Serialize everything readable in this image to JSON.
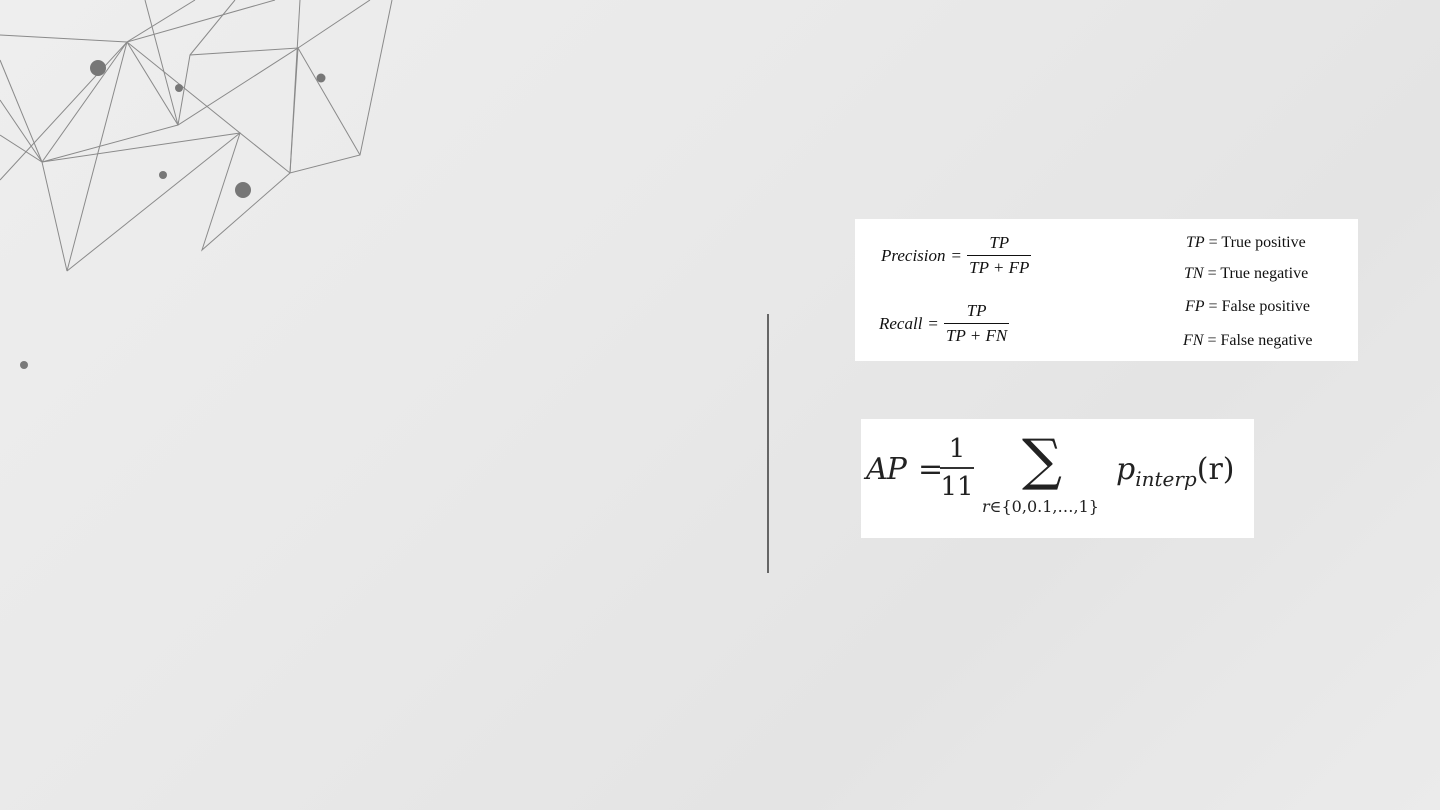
{
  "slide": {
    "background_color": "#e9e9e9",
    "decoration": "low-poly-network-icon",
    "divider_color": "#666666"
  },
  "metrics": {
    "precision": {
      "label": "Precision",
      "equals": "=",
      "numerator": "TP",
      "denominator": "TP + FP"
    },
    "recall": {
      "label": "Recall",
      "equals": "=",
      "numerator": "TP",
      "denominator": "TP + FN"
    },
    "definitions": [
      {
        "symbol": "TP",
        "equals": "=",
        "meaning": "True positive"
      },
      {
        "symbol": "TN",
        "equals": "=",
        "meaning": "True negative"
      },
      {
        "symbol": "FP",
        "equals": "=",
        "meaning": "False positive"
      },
      {
        "symbol": "FN",
        "equals": "=",
        "meaning": "False negative"
      }
    ]
  },
  "ap_formula": {
    "lhs": "AP",
    "equals": "=",
    "numerator": "1",
    "denominator": "11",
    "sum_symbol": "∑",
    "sum_subscript_var": "r",
    "sum_subscript_set": "∈{0,0.1,…,1}",
    "term": "p",
    "term_subscript": "interp",
    "term_arg": "(r)"
  }
}
